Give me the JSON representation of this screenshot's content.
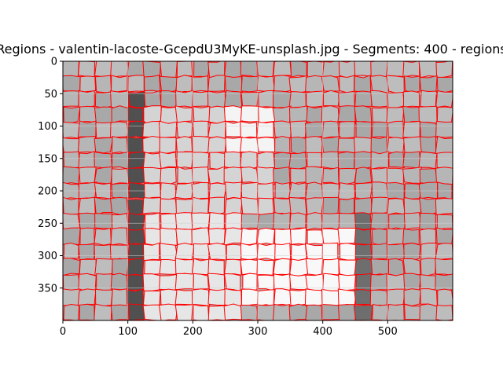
{
  "chart_data": {
    "type": "heatmap",
    "title": "Regions - valentin-lacoste-GcepdU3MyKE-unsplash.jpg - Segments: 400 - regions",
    "xlabel": "",
    "ylabel": "",
    "xlim": [
      0,
      600
    ],
    "ylim": [
      400,
      0
    ],
    "y_inverted": true,
    "x_ticks": [
      0,
      100,
      200,
      300,
      400,
      500
    ],
    "y_ticks": [
      0,
      50,
      100,
      150,
      200,
      250,
      300,
      350
    ],
    "grid": true,
    "segment_count": 400,
    "boundary_color": "#ff0000",
    "gray_levels": [
      "#505050",
      "#888888",
      "#a6a6a6",
      "#bcbcbc",
      "#d4d4d4",
      "#f4f4f4"
    ],
    "regions": [
      {
        "name": "left dark vertical strip",
        "x": [
          95,
          120
        ],
        "y": [
          50,
          400
        ],
        "tone": "#505050"
      },
      {
        "name": "upper light object",
        "x": [
          110,
          330
        ],
        "y": [
          60,
          245
        ],
        "tone": "#d4d4d4"
      },
      {
        "name": "upper bright highlight",
        "x": [
          240,
          320
        ],
        "y": [
          65,
          150
        ],
        "tone": "#f4f4f4"
      },
      {
        "name": "lower left light block",
        "x": [
          105,
          270
        ],
        "y": [
          225,
          400
        ],
        "tone": "#e6e6e6"
      },
      {
        "name": "lower bright block",
        "x": [
          265,
          460
        ],
        "y": [
          255,
          385
        ],
        "tone": "#f8f8f8"
      },
      {
        "name": "right dark strip",
        "x": [
          455,
          480
        ],
        "y": [
          240,
          400
        ],
        "tone": "#6e6e6e"
      },
      {
        "name": "background",
        "x": [
          0,
          600
        ],
        "y": [
          0,
          400
        ],
        "tone": "#b4b4b4"
      }
    ]
  }
}
